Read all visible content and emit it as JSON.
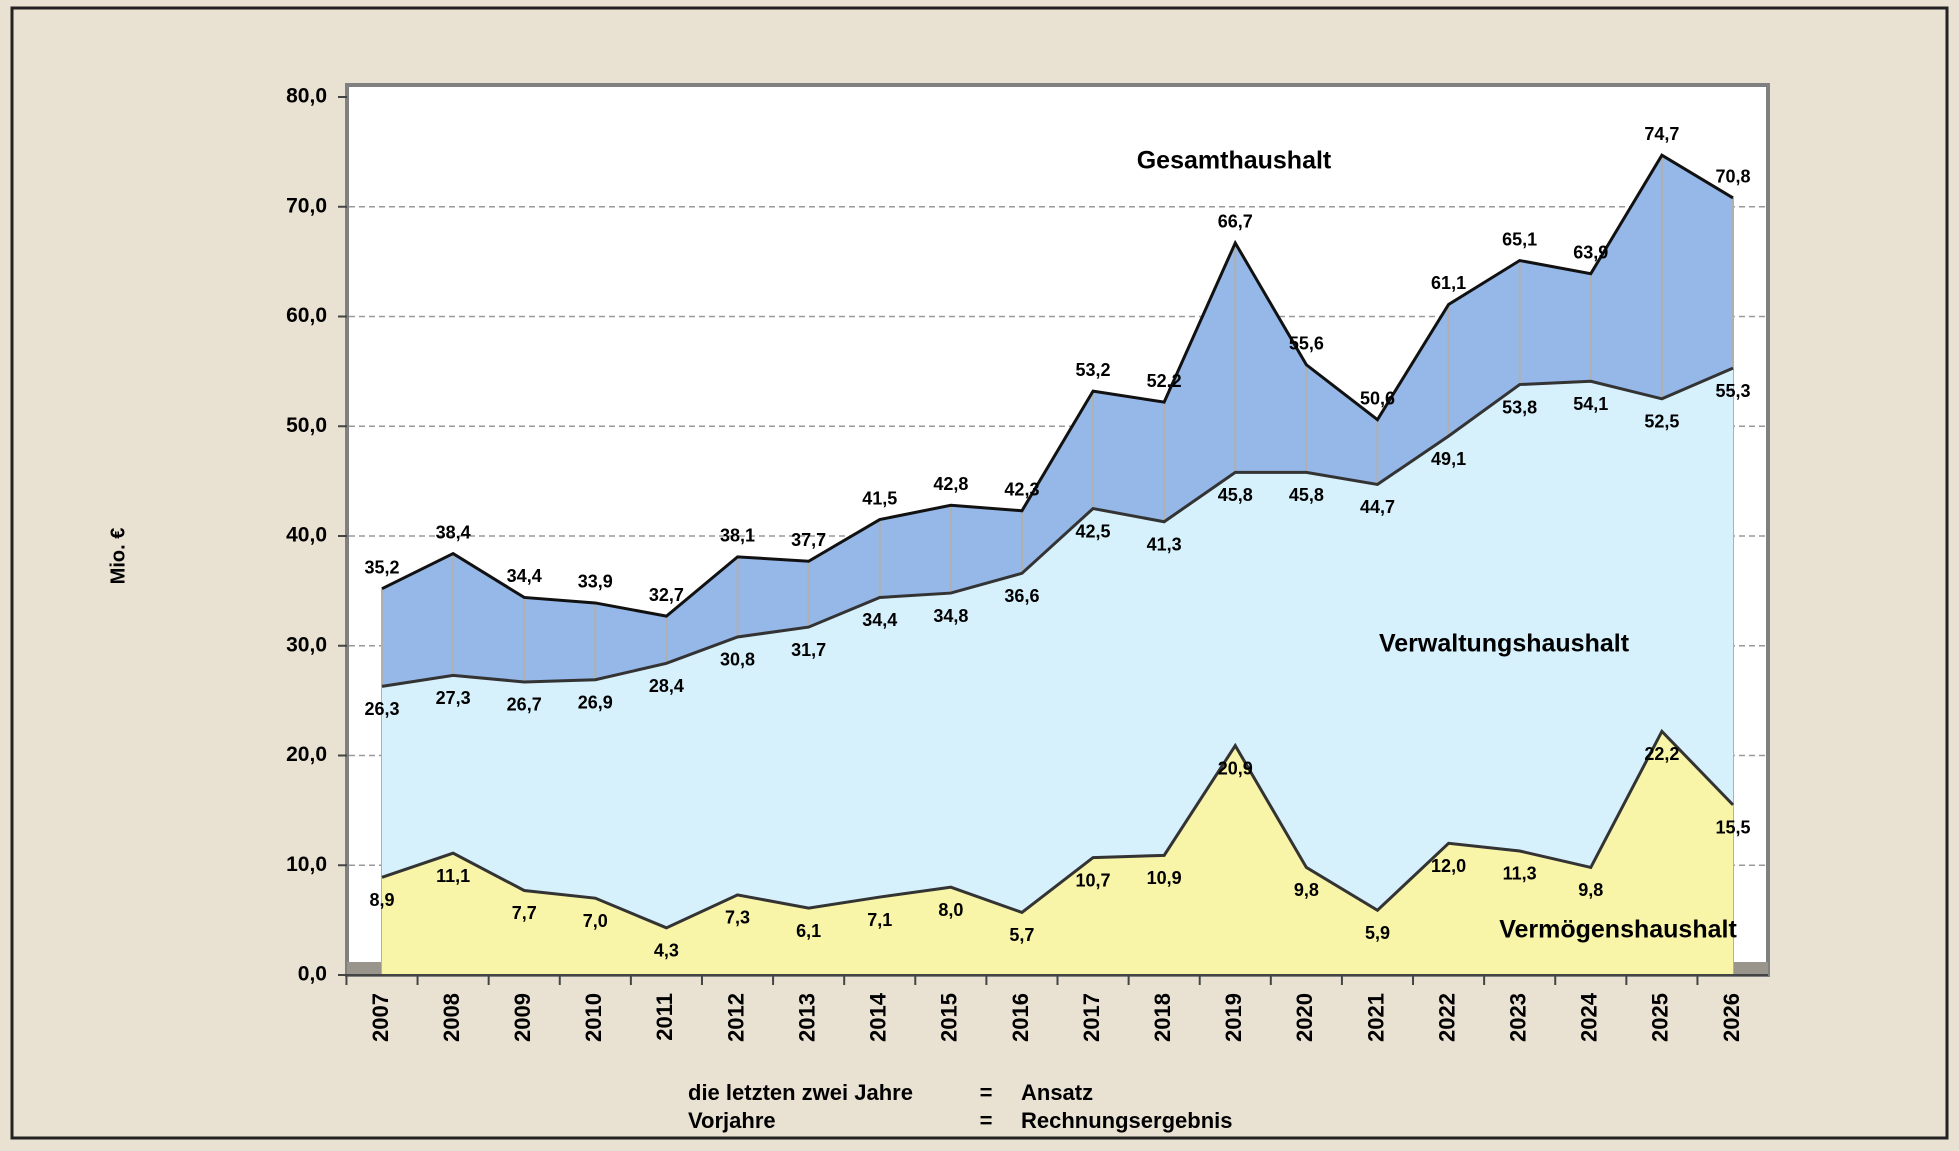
{
  "chart_data": {
    "type": "area",
    "y_label": "Mio. €",
    "categories": [
      "2007",
      "2008",
      "2009",
      "2010",
      "2011",
      "2012",
      "2013",
      "2014",
      "2015",
      "2016",
      "2017",
      "2018",
      "2019",
      "2020",
      "2021",
      "2022",
      "2023",
      "2024",
      "2025",
      "2026"
    ],
    "series": [
      {
        "name": "Gesamthaushalt",
        "color": "#95b8e8",
        "values": [
          35.2,
          38.4,
          34.4,
          33.9,
          32.7,
          38.1,
          37.7,
          41.5,
          42.8,
          42.3,
          53.2,
          52.2,
          66.7,
          55.6,
          50.6,
          61.1,
          65.1,
          63.9,
          74.7,
          70.8
        ],
        "value_labels": [
          "35,2",
          "38,4",
          "34,4",
          "33,9",
          "32,7",
          "38,1",
          "37,7",
          "41,5",
          "42,8",
          "42,3",
          "53,2",
          "52,2",
          "66,7",
          "55,6",
          "50,6",
          "61,1",
          "65,1",
          "63,9",
          "74,7",
          "70,8"
        ]
      },
      {
        "name": "Verwaltungshaushalt",
        "color": "#d7f1fc",
        "values": [
          26.3,
          27.3,
          26.7,
          26.9,
          28.4,
          30.8,
          31.7,
          34.4,
          34.8,
          36.6,
          42.5,
          41.3,
          45.8,
          45.8,
          44.7,
          49.1,
          53.8,
          54.1,
          52.5,
          55.3
        ],
        "value_labels": [
          "26,3",
          "27,3",
          "26,7",
          "26,9",
          "28,4",
          "30,8",
          "31,7",
          "34,4",
          "34,8",
          "36,6",
          "42,5",
          "41,3",
          "45,8",
          "45,8",
          "44,7",
          "49,1",
          "53,8",
          "54,1",
          "52,5",
          "55,3"
        ]
      },
      {
        "name": "Vermögenshaushalt",
        "color": "#f8f4a8",
        "values": [
          8.9,
          11.1,
          7.7,
          7.0,
          4.3,
          7.3,
          6.1,
          7.1,
          8.0,
          5.7,
          10.7,
          10.9,
          20.9,
          9.8,
          5.9,
          12.0,
          11.3,
          9.8,
          22.2,
          15.5
        ],
        "value_labels": [
          "8,9",
          "11,1",
          "7,7",
          "7,0",
          "4,3",
          "7,3",
          "6,1",
          "7,1",
          "8,0",
          "5,7",
          "10,7",
          "10,9",
          "20,9",
          "9,8",
          "5,9",
          "12,0",
          "11,3",
          "9,8",
          "22,2",
          "15,5"
        ]
      }
    ],
    "ylim": [
      0,
      80
    ],
    "yticks": [
      {
        "value": 0,
        "label": "0,0"
      },
      {
        "value": 10,
        "label": "10,0"
      },
      {
        "value": 20,
        "label": "20,0"
      },
      {
        "value": 30,
        "label": "30,0"
      },
      {
        "value": 40,
        "label": "40,0"
      },
      {
        "value": 50,
        "label": "50,0"
      },
      {
        "value": 60,
        "label": "60,0"
      },
      {
        "value": 70,
        "label": "70,0"
      },
      {
        "value": 80,
        "label": "80,0"
      }
    ],
    "grid": true,
    "notes": [
      [
        "die letzten zwei Jahre",
        "=",
        "Ansatz"
      ],
      [
        "Vorjahre",
        "=",
        "Rechnungsergebnis"
      ]
    ]
  }
}
